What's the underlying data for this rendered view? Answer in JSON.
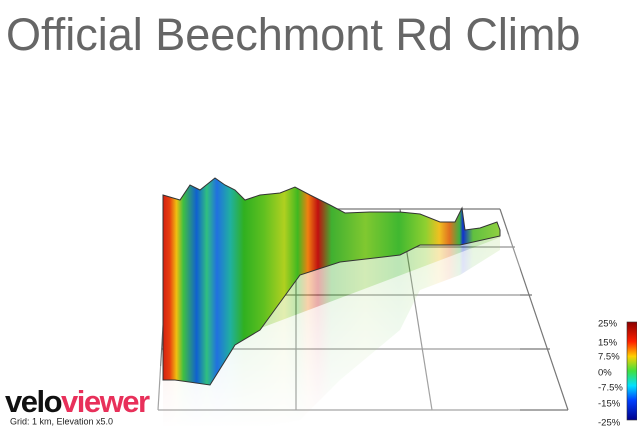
{
  "header": {
    "title": "Official Beechmont Rd Climb"
  },
  "logo": {
    "part1": "velo",
    "part2": "viewer"
  },
  "footer": {
    "grid_note": "Grid: 1 km, Elevation x5.0"
  },
  "legend": {
    "labels": [
      "25%",
      "15%",
      "7.5%",
      "0%",
      "-7.5%",
      "-15%",
      "-25%"
    ]
  }
}
